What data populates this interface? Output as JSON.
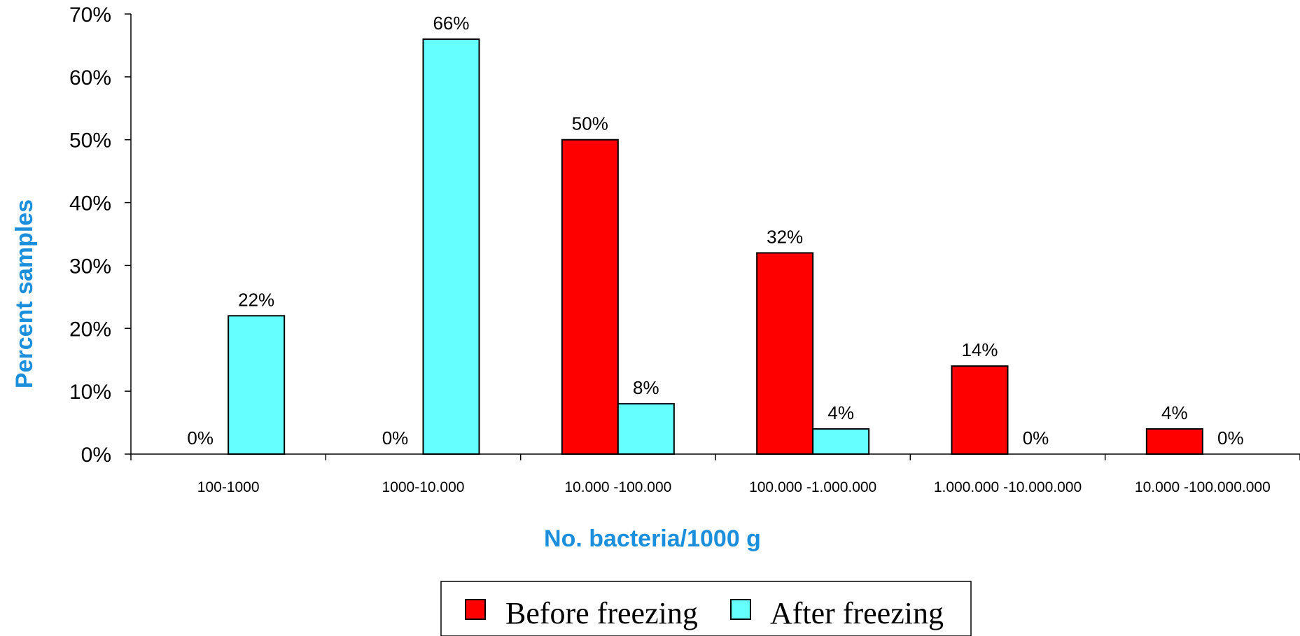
{
  "chart_data": {
    "type": "bar",
    "xlabel": "No. bacteria/1000 g",
    "ylabel": "Percent samples",
    "ylim": [
      0,
      70
    ],
    "y_ticks": [
      "0%",
      "10%",
      "20%",
      "30%",
      "40%",
      "50%",
      "60%",
      "70%"
    ],
    "y_tick_values": [
      0,
      10,
      20,
      30,
      40,
      50,
      60,
      70
    ],
    "categories": [
      "100-1000",
      "1000-10.000",
      "10.000 -100.000",
      "100.000 -1.000.000",
      "1.000.000 -10.000.000",
      "10.000 -100.000.000"
    ],
    "series": [
      {
        "name": "Before freezing",
        "color": "#FF0000",
        "values": [
          0,
          0,
          50,
          32,
          14,
          4
        ],
        "labels": [
          "0%",
          "0%",
          "50%",
          "32%",
          "14%",
          "4%"
        ]
      },
      {
        "name": "After freezing",
        "color": "#66FFFF",
        "values": [
          22,
          66,
          8,
          4,
          0,
          0
        ],
        "labels": [
          "22%",
          "66%",
          "8%",
          "4%",
          "0%",
          "0%"
        ]
      }
    ],
    "axis_title_color": "#1B8FDC",
    "grid": false,
    "legend_position": "bottom-center"
  }
}
